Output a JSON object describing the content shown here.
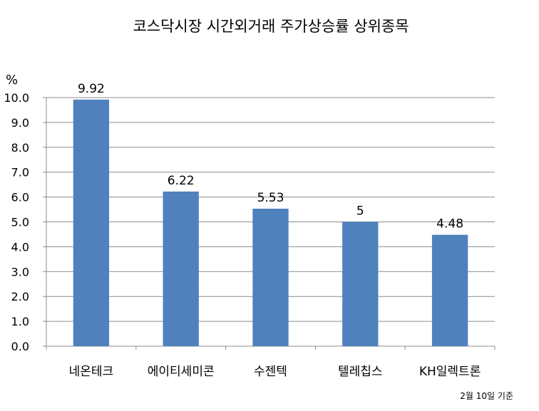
{
  "chart_data": {
    "type": "bar",
    "title": "코스닥시장 시간외거래  주가상승률 상위종목",
    "unit": "%",
    "categories": [
      "네온테크",
      "에이티세미콘",
      "수젠텍",
      "텔레칩스",
      "KH일렉트론"
    ],
    "values": [
      9.92,
      6.22,
      5.53,
      5,
      4.48
    ],
    "value_labels": [
      "9.92",
      "6.22",
      "5.53",
      "5",
      "4.48"
    ],
    "y_ticks": [
      "0.0",
      "1.0",
      "2.0",
      "3.0",
      "4.0",
      "5.0",
      "6.0",
      "7.0",
      "8.0",
      "9.0",
      "10.0"
    ],
    "ylim": [
      0,
      10
    ],
    "grid": true,
    "bar_color": "#4F81BD",
    "note": "2월 10일 기준"
  }
}
